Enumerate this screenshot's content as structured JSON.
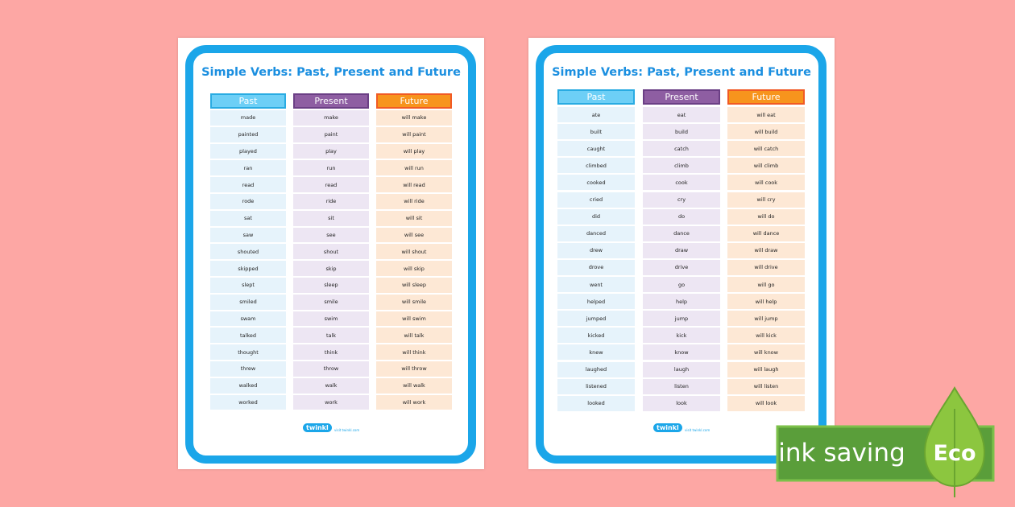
{
  "pages": [
    {
      "title": "Simple Verbs: Past, Present and Future",
      "headers": [
        "Past",
        "Present",
        "Future"
      ],
      "rows": [
        [
          "made",
          "make",
          "will make"
        ],
        [
          "painted",
          "paint",
          "will paint"
        ],
        [
          "played",
          "play",
          "will play"
        ],
        [
          "ran",
          "run",
          "will run"
        ],
        [
          "read",
          "read",
          "will read"
        ],
        [
          "rode",
          "ride",
          "will ride"
        ],
        [
          "sat",
          "sit",
          "will sit"
        ],
        [
          "saw",
          "see",
          "will see"
        ],
        [
          "shouted",
          "shout",
          "will shout"
        ],
        [
          "skipped",
          "skip",
          "will skip"
        ],
        [
          "slept",
          "sleep",
          "will sleep"
        ],
        [
          "smiled",
          "smile",
          "will smile"
        ],
        [
          "swam",
          "swim",
          "will swim"
        ],
        [
          "talked",
          "talk",
          "will talk"
        ],
        [
          "thought",
          "think",
          "will think"
        ],
        [
          "threw",
          "throw",
          "will throw"
        ],
        [
          "walked",
          "walk",
          "will walk"
        ],
        [
          "worked",
          "work",
          "will work"
        ]
      ],
      "logo": "twinkl",
      "site": "visit twinkl.com"
    },
    {
      "title": "Simple Verbs: Past, Present and Future",
      "headers": [
        "Past",
        "Present",
        "Future"
      ],
      "rows": [
        [
          "ate",
          "eat",
          "will eat"
        ],
        [
          "built",
          "build",
          "will build"
        ],
        [
          "caught",
          "catch",
          "will catch"
        ],
        [
          "climbed",
          "climb",
          "will climb"
        ],
        [
          "cooked",
          "cook",
          "will cook"
        ],
        [
          "cried",
          "cry",
          "will cry"
        ],
        [
          "did",
          "do",
          "will do"
        ],
        [
          "danced",
          "dance",
          "will dance"
        ],
        [
          "drew",
          "draw",
          "will draw"
        ],
        [
          "drove",
          "drive",
          "will drive"
        ],
        [
          "went",
          "go",
          "will go"
        ],
        [
          "helped",
          "help",
          "will help"
        ],
        [
          "jumped",
          "jump",
          "will jump"
        ],
        [
          "kicked",
          "kick",
          "will kick"
        ],
        [
          "knew",
          "know",
          "will know"
        ],
        [
          "laughed",
          "laugh",
          "will laugh"
        ],
        [
          "listened",
          "listen",
          "will listen"
        ],
        [
          "looked",
          "look",
          "will look"
        ]
      ],
      "logo": "twinkl",
      "site": "visit twinkl.com"
    }
  ],
  "badge": {
    "text": "ink saving",
    "label": "Eco"
  }
}
